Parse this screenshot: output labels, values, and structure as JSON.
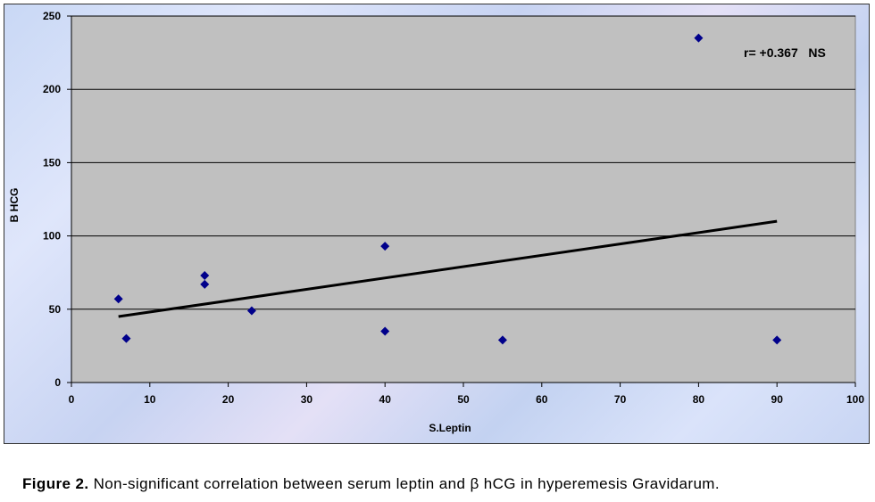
{
  "chart_data": {
    "type": "scatter",
    "xlabel": "S.Leptin",
    "ylabel": "B HCG",
    "xlim": [
      0,
      100
    ],
    "ylim": [
      0,
      250
    ],
    "x_ticks": [
      0,
      10,
      20,
      30,
      40,
      50,
      60,
      70,
      80,
      90,
      100
    ],
    "y_ticks": [
      0,
      50,
      100,
      150,
      200,
      250
    ],
    "grid": "horizontal",
    "series": [
      {
        "marker_color": "#00008b",
        "marker": "diamond",
        "points": [
          {
            "x": 6,
            "y": 57
          },
          {
            "x": 7,
            "y": 30
          },
          {
            "x": 17,
            "y": 73
          },
          {
            "x": 17,
            "y": 67
          },
          {
            "x": 23,
            "y": 49
          },
          {
            "x": 40,
            "y": 93
          },
          {
            "x": 40,
            "y": 35
          },
          {
            "x": 55,
            "y": 29
          },
          {
            "x": 80,
            "y": 235
          },
          {
            "x": 90,
            "y": 29
          }
        ]
      }
    ],
    "trendline": {
      "x": [
        6,
        90
      ],
      "y": [
        45,
        110
      ],
      "color": "#000000"
    },
    "annotation": "r= +0.367   NS",
    "plot_background": "#c0c0c0"
  },
  "caption": {
    "label": "Figure 2.",
    "text": " Non-significant correlation between serum leptin and β hCG in hyperemesis Gravidarum."
  }
}
